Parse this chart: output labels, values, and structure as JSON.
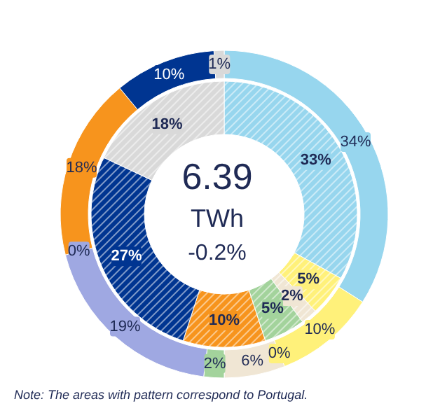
{
  "chart_data": {
    "type": "donut",
    "categories": [
      null,
      null,
      null,
      null,
      null,
      null,
      null,
      null,
      null,
      null
    ],
    "series": [
      {
        "colors": [
          "#97d6ee",
          "#fff17a",
          "#f0c000",
          "#f0e6d4",
          "#a3d39c",
          "#9fa8e2",
          "#595959",
          "#f7941d",
          "#003591",
          "#d9d9d9"
        ],
        "values": [
          34,
          10,
          0,
          6,
          2,
          19,
          0,
          18,
          10,
          1
        ],
        "value_labels": [
          "34%",
          "10%",
          "0%",
          "6%",
          "2%",
          "19%",
          "0%",
          "18%",
          "10%",
          "1%"
        ]
      },
      {
        "colors": [
          "#97d6ee",
          "#fff17a",
          null,
          "#f0e6d4",
          "#a3d39c",
          null,
          null,
          "#f7941d",
          "#003591",
          "#d9d9d9"
        ],
        "values": [
          33,
          5,
          null,
          2,
          5,
          null,
          null,
          10,
          27,
          18
        ],
        "value_labels": [
          "33%",
          "5%",
          null,
          "2%",
          "5%",
          null,
          null,
          "10%",
          "27%",
          "18%"
        ]
      }
    ],
    "annotations": [
      "6.39",
      "TWh",
      "-0.2%",
      "Note: The areas with pattern correspond to Portugal."
    ]
  }
}
